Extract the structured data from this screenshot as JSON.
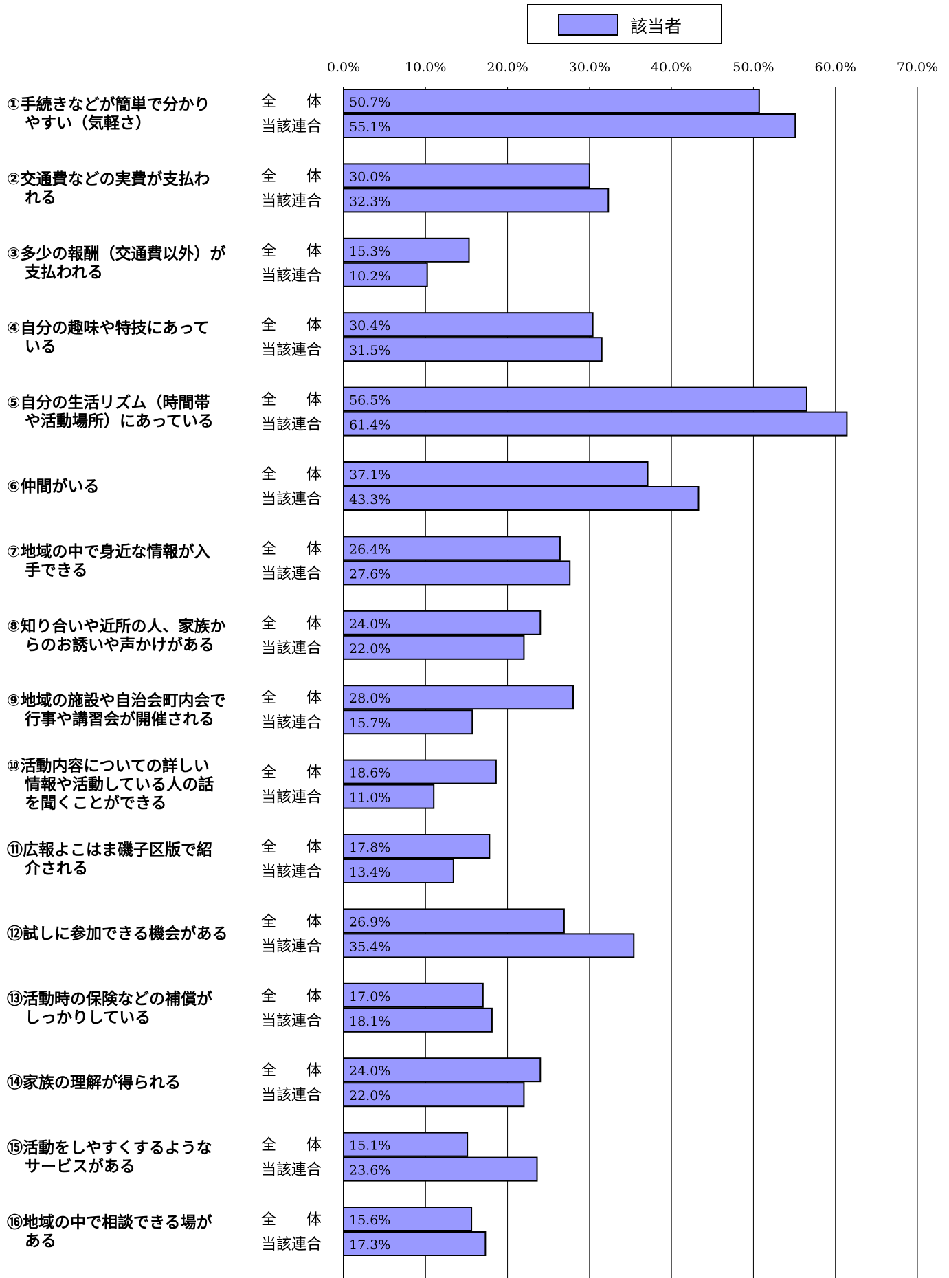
{
  "legend": {
    "label": "該当者",
    "color": "#9999ff"
  },
  "row_labels": [
    "全　　体",
    "当該連合"
  ],
  "colors": {
    "bar": "#9999ff",
    "border": "#000000",
    "grid": "#000000"
  },
  "chart_data": {
    "type": "bar",
    "orientation": "horizontal",
    "xlim": [
      0,
      70
    ],
    "ticks": [
      "0.0%",
      "10.0%",
      "20.0%",
      "30.0%",
      "40.0%",
      "50.0%",
      "60.0%",
      "70.0%"
    ],
    "grid": true,
    "legend_position": "top",
    "categories": [
      [
        "①手続きなどが簡単で分かり",
        "やすい（気軽さ）"
      ],
      [
        "②交通費などの実費が支払わ",
        "れる"
      ],
      [
        "③多少の報酬（交通費以外）が",
        "支払われる"
      ],
      [
        "④自分の趣味や特技にあって",
        "いる"
      ],
      [
        "⑤自分の生活リズム（時間帯",
        "や活動場所）にあっている"
      ],
      [
        "⑥仲間がいる"
      ],
      [
        "⑦地域の中で身近な情報が入",
        "手できる"
      ],
      [
        "⑧知り合いや近所の人、家族か",
        "らのお誘いや声かけがある"
      ],
      [
        "⑨地域の施設や自治会町内会で",
        "行事や講習会が開催される"
      ],
      [
        "⑩活動内容についての詳しい",
        "情報や活動している人の話",
        "を聞くことができる"
      ],
      [
        "⑪広報よこはま磯子区版で紹",
        "介される"
      ],
      [
        "⑫試しに参加できる機会がある"
      ],
      [
        "⑬活動時の保険などの補償が",
        "しっかりしている"
      ],
      [
        "⑭家族の理解が得られる"
      ],
      [
        "⑮活動をしやすくするような",
        "サービスがある"
      ],
      [
        "⑯地域の中で相談できる場が",
        "ある"
      ]
    ],
    "series": [
      {
        "name": "全　　体",
        "values": [
          50.7,
          30.0,
          15.3,
          30.4,
          56.5,
          37.1,
          26.4,
          24.0,
          28.0,
          18.6,
          17.8,
          26.9,
          17.0,
          24.0,
          15.1,
          15.6
        ],
        "labels": [
          "50.7%",
          "30.0%",
          "15.3%",
          "30.4%",
          "56.5%",
          "37.1%",
          "26.4%",
          "24.0%",
          "28.0%",
          "18.6%",
          "17.8%",
          "26.9%",
          "17.0%",
          "24.0%",
          "15.1%",
          "15.6%"
        ]
      },
      {
        "name": "当該連合",
        "values": [
          55.1,
          32.3,
          10.2,
          31.5,
          61.4,
          43.3,
          27.6,
          22.0,
          15.7,
          11.0,
          13.4,
          35.4,
          18.1,
          22.0,
          23.6,
          17.3
        ],
        "labels": [
          "55.1%",
          "32.3%",
          "10.2%",
          "31.5%",
          "61.4%",
          "43.3%",
          "27.6%",
          "22.0%",
          "15.7%",
          "11.0%",
          "13.4%",
          "35.4%",
          "18.1%",
          "22.0%",
          "23.6%",
          "17.3%"
        ]
      }
    ]
  }
}
